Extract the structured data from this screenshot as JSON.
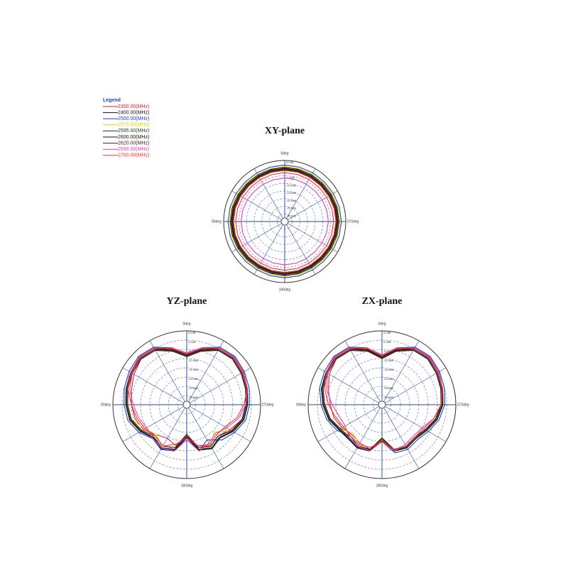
{
  "chart_data": {
    "type": "polar",
    "legend_title": "Legend",
    "legend": [
      {
        "name": "2300.00(MHz)",
        "color": "#e0202a"
      },
      {
        "name": "2400.00(MHz)",
        "color": "#111111"
      },
      {
        "name": "2500.00(MHz)",
        "color": "#2040d0"
      },
      {
        "name": "2570.00(MHz)",
        "color": "#e8d000"
      },
      {
        "name": "2595.00(MHz)",
        "color": "#1c3a1c"
      },
      {
        "name": "2600.00(MHz)",
        "color": "#101010"
      },
      {
        "name": "2620.00(MHz)",
        "color": "#4a1414"
      },
      {
        "name": "2690.00(MHz)",
        "color": "#e040c0"
      },
      {
        "name": "2700.00(MHz)",
        "color": "#ff3030"
      }
    ],
    "rlim": [
      -35,
      5
    ],
    "rticks": [
      {
        "value": 5,
        "label": "5.0dB"
      },
      {
        "value": 0,
        "label": "0.0dB"
      },
      {
        "value": -5,
        "label": "-5.0dB"
      },
      {
        "value": -10,
        "label": "-10.0dB"
      },
      {
        "value": -15,
        "label": "-15.0dB"
      },
      {
        "value": -20,
        "label": "-20.0dB"
      },
      {
        "value": -25,
        "label": "-25.0dB"
      },
      {
        "value": -30,
        "label": "-30.0dB"
      }
    ],
    "thetaticks": [
      {
        "value": 0,
        "label": "0deg"
      },
      {
        "value": 90,
        "label": "90deg"
      },
      {
        "value": 180,
        "label": "180deg"
      },
      {
        "value": 270,
        "label": "270deg"
      }
    ],
    "theta": [
      0,
      15,
      30,
      45,
      60,
      75,
      90,
      105,
      120,
      135,
      150,
      165,
      180,
      195,
      210,
      225,
      240,
      255,
      270,
      285,
      300,
      315,
      330,
      345
    ],
    "plots": [
      {
        "title": "XY-plane",
        "series": [
          {
            "values": [
              -1.5,
              -1.6,
              -1.8,
              -1.9,
              -1.7,
              -1.5,
              -1.4,
              -1.5,
              -1.7,
              -1.9,
              -2,
              -1.8,
              -1.6,
              -1.7,
              -1.9,
              -2,
              -1.8,
              -1.6,
              -1.4,
              -1.5,
              -1.7,
              -1.8,
              -1.7,
              -1.6
            ]
          },
          {
            "values": [
              0.5,
              0.4,
              0.2,
              0.1,
              0.3,
              0.5,
              0.6,
              0.5,
              0.3,
              0.1,
              0,
              0.2,
              0.4,
              0.3,
              0.1,
              0,
              0.2,
              0.4,
              0.6,
              0.5,
              0.3,
              0.2,
              0.3,
              0.4
            ]
          },
          {
            "values": [
              2,
              1.9,
              1.7,
              1.6,
              1.8,
              2,
              2.1,
              2,
              1.8,
              1.6,
              1.5,
              1.7,
              1.9,
              1.8,
              1.6,
              1.5,
              1.7,
              1.9,
              2.1,
              2,
              1.8,
              1.7,
              1.8,
              1.9
            ]
          },
          {
            "values": [
              1,
              0.9,
              0.7,
              0.6,
              0.8,
              1,
              1.1,
              1,
              0.8,
              0.6,
              0.5,
              0.7,
              0.9,
              0.8,
              0.6,
              0.5,
              0.7,
              0.9,
              1.1,
              1,
              0.8,
              0.7,
              0.8,
              0.9
            ]
          },
          {
            "values": [
              -0.5,
              -0.6,
              -0.8,
              -0.9,
              -0.7,
              -0.5,
              -0.4,
              -0.5,
              -0.7,
              -0.9,
              -1,
              -0.8,
              -0.6,
              -0.7,
              -0.9,
              -1,
              -0.8,
              -0.6,
              -0.4,
              -0.5,
              -0.7,
              -0.8,
              -0.7,
              -0.6
            ]
          },
          {
            "values": [
              -0.2,
              -0.3,
              -0.5,
              -0.6,
              -0.4,
              -0.2,
              -0.1,
              -0.2,
              -0.4,
              -0.6,
              -0.7,
              -0.5,
              -0.3,
              -0.4,
              -0.6,
              -0.7,
              -0.5,
              -0.3,
              -0.1,
              -0.2,
              -0.4,
              -0.5,
              -0.4,
              -0.3
            ]
          },
          {
            "values": [
              -1,
              -1.1,
              -1.3,
              -1.4,
              -1.2,
              -1,
              -0.9,
              -1,
              -1.2,
              -1.4,
              -1.5,
              -1.3,
              -1.1,
              -1.2,
              -1.4,
              -1.5,
              -1.3,
              -1.1,
              -0.9,
              -1,
              -1.2,
              -1.3,
              -1.2,
              -1.1
            ]
          },
          {
            "values": [
              -6.5,
              -6.6,
              -6.8,
              -6.9,
              -6.7,
              -6.5,
              -6.4,
              -6.5,
              -6.7,
              -6.9,
              -7,
              -6.8,
              -6.6,
              -6.7,
              -6.9,
              -7,
              -6.8,
              -6.6,
              -6.4,
              -6.5,
              -6.7,
              -6.8,
              -6.7,
              -6.6
            ]
          },
          {
            "values": [
              -3,
              -3.1,
              -3.3,
              -3.4,
              -3.2,
              -3,
              -2.9,
              -3,
              -3.2,
              -3.4,
              -3.5,
              -3.3,
              -3.1,
              -3.2,
              -3.4,
              -3.5,
              -3.3,
              -3.1,
              -2.9,
              -3,
              -3.2,
              -3.3,
              -3.2,
              -3.1
            ]
          }
        ]
      },
      {
        "title": "YZ-plane",
        "series": [
          {
            "values": [
              -9,
              -5,
              -1,
              0,
              -2,
              -4,
              -5,
              -6,
              -8,
              -12,
              -14,
              -12,
              -18,
              -12,
              -9,
              -11,
              -8,
              -4,
              -3,
              -2,
              -1,
              0,
              -1,
              -5
            ]
          },
          {
            "values": [
              -8,
              -4,
              0,
              1,
              0,
              -1,
              -2,
              -3,
              -6,
              -10,
              -8,
              -10,
              -18,
              -10,
              -8,
              -10,
              -6,
              -3,
              -2,
              -1,
              0,
              1,
              0,
              -4
            ]
          },
          {
            "values": [
              -7,
              -3,
              1,
              2,
              1,
              0,
              -1,
              -2,
              -5,
              -9,
              -7,
              -9,
              -17,
              -9,
              -13,
              -8,
              -5,
              -2,
              -1,
              0,
              1,
              2,
              1,
              -3
            ]
          },
          {
            "values": [
              -8,
              -4,
              0,
              1,
              0,
              -1,
              -2,
              -4,
              -9,
              -12,
              -8,
              -10,
              -18,
              -10,
              -9,
              -14,
              -7,
              -3,
              -2,
              -1,
              0,
              1,
              0,
              -4
            ]
          },
          {
            "values": [
              -8.5,
              -4.5,
              -0.5,
              0.5,
              -0.5,
              -1.5,
              -2.5,
              -3.5,
              -6.5,
              -10,
              -8,
              -10,
              -18,
              -10,
              -8,
              -10,
              -6.5,
              -3.5,
              -2.5,
              -1.5,
              -0.5,
              0.5,
              -0.5,
              -4.5
            ]
          },
          {
            "values": [
              -8,
              -4,
              0,
              1,
              0,
              -1,
              -2,
              -3,
              -6,
              -9.5,
              -7.5,
              -9.5,
              -17.5,
              -9.5,
              -7.5,
              -9.5,
              -6,
              -3,
              -2,
              -1,
              0,
              1,
              0,
              -4
            ]
          },
          {
            "values": [
              -9,
              -5,
              -1,
              0,
              -1,
              -2,
              -3,
              -4,
              -7,
              -11,
              -9,
              -11,
              -19,
              -11,
              -9,
              -11,
              -7,
              -4,
              -3,
              -2,
              -1,
              0,
              -1,
              -5
            ]
          },
          {
            "values": [
              -7,
              -3,
              0,
              1,
              -1,
              -3,
              -6,
              -8,
              -10,
              -9,
              -8,
              -9,
              -16,
              -9,
              -11,
              -13,
              -10,
              -6,
              -3,
              -1,
              0,
              1,
              0,
              -3
            ]
          },
          {
            "values": [
              -7.5,
              -3.5,
              0.5,
              1.5,
              0,
              -2,
              -5,
              -7,
              -9,
              -11,
              -9,
              -13,
              -17,
              -12,
              -10,
              -12,
              -11,
              -7,
              -4,
              -1,
              0.5,
              1.5,
              0.5,
              -3.5
            ]
          }
        ]
      },
      {
        "title": "ZX-plane",
        "series": [
          {
            "values": [
              -10,
              -5,
              -1,
              0,
              -2,
              -5,
              -7,
              -8,
              -10,
              -12,
              -11,
              -10,
              -16,
              -10,
              -9,
              -10,
              -8,
              -5,
              -3,
              -2,
              -1,
              0,
              -1,
              -5
            ]
          },
          {
            "values": [
              -9,
              -4,
              0,
              1,
              0,
              -1,
              -3,
              -5,
              -8,
              -9,
              -8,
              -9,
              -16,
              -9,
              -8,
              -9,
              -7,
              -4,
              -2,
              -1,
              0,
              1,
              0,
              -4
            ]
          },
          {
            "values": [
              -8,
              -3,
              1,
              2,
              1,
              0,
              -2,
              -4,
              -7,
              -11,
              -9,
              -10,
              -15,
              -8,
              -7,
              -8,
              -6,
              -3,
              -1,
              0,
              1,
              2,
              1,
              -3
            ]
          },
          {
            "values": [
              -9,
              -4,
              0,
              1,
              0,
              -1,
              -3,
              -6,
              -9,
              -13,
              -10,
              -9,
              -16,
              -9,
              -8,
              -9,
              -7,
              -4,
              -2,
              -1,
              0,
              1,
              0,
              -4
            ]
          },
          {
            "values": [
              -9.5,
              -4.5,
              -0.5,
              0.5,
              -0.5,
              -1.5,
              -3.5,
              -5.5,
              -8.5,
              -9.5,
              -8.5,
              -9.5,
              -16.5,
              -9.5,
              -8.5,
              -9.5,
              -7.5,
              -4.5,
              -2.5,
              -1.5,
              -0.5,
              0.5,
              -0.5,
              -4.5
            ]
          },
          {
            "values": [
              -9,
              -4,
              0,
              1,
              0,
              -1,
              -3,
              -5,
              -8,
              -9,
              -8,
              -9,
              -15.5,
              -9,
              -8,
              -9,
              -7,
              -4,
              -2,
              -1,
              0,
              1,
              0,
              -4
            ]
          },
          {
            "values": [
              -10,
              -5,
              -1,
              0,
              -1,
              -2,
              -4,
              -6,
              -9,
              -10,
              -9,
              -10,
              -17,
              -10,
              -9,
              -10,
              -8,
              -5,
              -3,
              -2,
              -1,
              0,
              -1,
              -5
            ]
          },
          {
            "values": [
              -8,
              -3,
              0,
              1,
              -1,
              -4,
              -8,
              -11,
              -12,
              -10,
              -9,
              -9,
              -15,
              -9,
              -10,
              -11,
              -10,
              -6,
              -3,
              -1,
              0,
              1,
              0,
              -3
            ]
          },
          {
            "values": [
              -8.5,
              -3.5,
              0.5,
              1.5,
              0,
              -3,
              -6,
              -9,
              -11,
              -11,
              -10,
              -11,
              -15,
              -10,
              -9,
              -10,
              -9,
              -6,
              -3,
              -1,
              0.5,
              1.5,
              0.5,
              -3.5
            ]
          }
        ]
      }
    ]
  }
}
